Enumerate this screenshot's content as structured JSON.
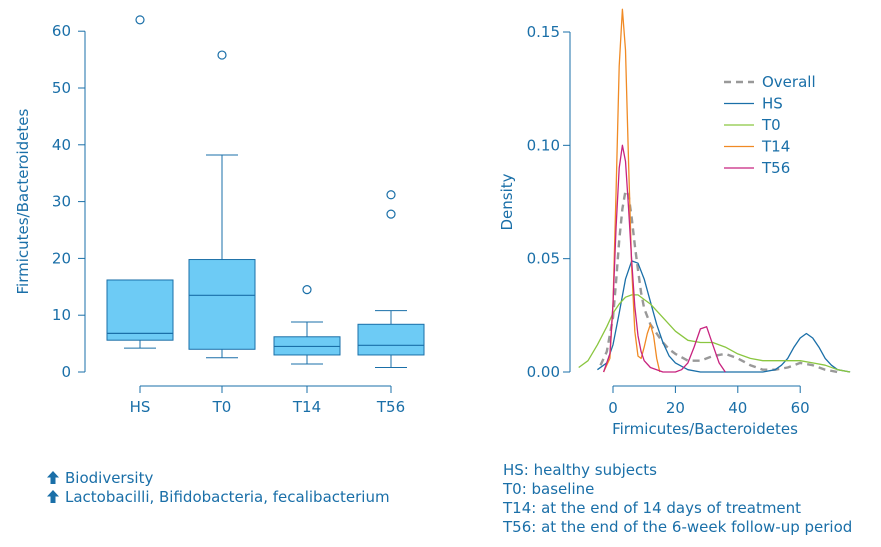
{
  "chart_data": [
    {
      "type": "box",
      "ylabel": "Firmicutes/Bacteroidetes",
      "xlabel": "",
      "ylim": [
        0,
        60
      ],
      "yticks": [
        0,
        10,
        20,
        30,
        40,
        50,
        60
      ],
      "categories": [
        "HS",
        "T0",
        "T14",
        "T56"
      ],
      "boxes": [
        {
          "name": "HS",
          "whisker_low": 4.2,
          "q1": 5.6,
          "median": 6.8,
          "q3": 16.2,
          "whisker_high": 16.2,
          "outliers": [
            62
          ]
        },
        {
          "name": "T0",
          "whisker_low": 2.5,
          "q1": 4.0,
          "median": 13.5,
          "q3": 19.8,
          "whisker_high": 38.2,
          "outliers": [
            55.8
          ]
        },
        {
          "name": "T14",
          "whisker_low": 1.4,
          "q1": 3.0,
          "median": 4.5,
          "q3": 6.2,
          "whisker_high": 8.8,
          "outliers": [
            14.5
          ]
        },
        {
          "name": "T56",
          "whisker_low": 0.8,
          "q1": 3.0,
          "median": 4.7,
          "q3": 8.4,
          "whisker_high": 10.8,
          "outliers": [
            27.8,
            31.2
          ]
        }
      ],
      "colors": {
        "axis": "#1a6fa8",
        "box_fill": "#6dcbf5",
        "box_stroke": "#1a6fa8"
      }
    },
    {
      "type": "line",
      "xlabel": "Firmicutes/Bacteroidetes",
      "ylabel": "Density",
      "xlim": [
        -11,
        78
      ],
      "ylim": [
        0,
        0.16
      ],
      "xticks": [
        0,
        20,
        40,
        60
      ],
      "yticks": [
        0.0,
        0.05,
        0.1,
        0.15
      ],
      "ytick_labels": [
        "0.00",
        "0.05",
        "0.10",
        "0.15"
      ],
      "legend": {
        "position": "top-right"
      },
      "series": [
        {
          "name": "Overall",
          "color": "#999999",
          "dashed": true,
          "x": [
            -4,
            -2,
            0,
            1,
            2,
            3,
            4,
            5,
            6,
            7,
            8,
            9,
            10,
            12,
            14,
            16,
            18,
            20,
            24,
            28,
            32,
            36,
            40,
            44,
            48,
            52,
            56,
            60,
            64,
            68,
            72
          ],
          "y": [
            0.003,
            0.009,
            0.024,
            0.04,
            0.058,
            0.072,
            0.08,
            0.078,
            0.068,
            0.056,
            0.045,
            0.035,
            0.028,
            0.021,
            0.017,
            0.013,
            0.01,
            0.008,
            0.005,
            0.005,
            0.007,
            0.008,
            0.006,
            0.003,
            0.001,
            0.001,
            0.002,
            0.004,
            0.003,
            0.001,
            0.0
          ]
        },
        {
          "name": "HS",
          "color": "#1a6fa8",
          "dashed": false,
          "x": [
            -5,
            -2,
            0,
            2,
            4,
            6,
            8,
            10,
            12,
            14,
            16,
            18,
            20,
            24,
            28,
            32,
            36,
            40,
            44,
            48,
            52,
            54,
            56,
            58,
            60,
            62,
            64,
            66,
            68,
            70,
            72,
            76
          ],
          "y": [
            0.001,
            0.004,
            0.012,
            0.026,
            0.041,
            0.049,
            0.048,
            0.041,
            0.031,
            0.021,
            0.013,
            0.007,
            0.004,
            0.001,
            0.0,
            0.0,
            0.0,
            0.0,
            0.0,
            0.0,
            0.001,
            0.003,
            0.006,
            0.011,
            0.015,
            0.017,
            0.015,
            0.011,
            0.006,
            0.003,
            0.001,
            0.0
          ]
        },
        {
          "name": "T0",
          "color": "#8ac640",
          "dashed": false,
          "x": [
            -11,
            -8,
            -5,
            -2,
            0,
            2,
            4,
            6,
            8,
            10,
            12,
            14,
            16,
            18,
            20,
            24,
            28,
            32,
            36,
            40,
            44,
            48,
            52,
            56,
            60,
            64,
            68,
            72,
            76
          ],
          "y": [
            0.002,
            0.005,
            0.012,
            0.02,
            0.026,
            0.03,
            0.033,
            0.034,
            0.034,
            0.032,
            0.03,
            0.027,
            0.024,
            0.021,
            0.018,
            0.014,
            0.013,
            0.013,
            0.011,
            0.008,
            0.006,
            0.005,
            0.005,
            0.005,
            0.005,
            0.004,
            0.003,
            0.001,
            0.0
          ]
        },
        {
          "name": "T14",
          "color": "#f08a24",
          "dashed": false,
          "x": [
            -3,
            -1,
            0,
            1,
            2,
            3,
            4,
            5,
            6,
            7,
            8,
            9,
            10,
            11,
            12,
            13,
            14,
            15
          ],
          "y": [
            0.0,
            0.006,
            0.03,
            0.08,
            0.135,
            0.16,
            0.142,
            0.092,
            0.046,
            0.018,
            0.007,
            0.006,
            0.011,
            0.017,
            0.021,
            0.016,
            0.006,
            0.0
          ]
        },
        {
          "name": "T56",
          "color": "#c8237f",
          "dashed": false,
          "x": [
            -3,
            -1,
            0,
            1,
            2,
            3,
            4,
            5,
            6,
            7,
            8,
            9,
            10,
            12,
            14,
            16,
            18,
            20,
            22,
            24,
            26,
            28,
            30,
            32,
            34,
            36
          ],
          "y": [
            0.0,
            0.008,
            0.03,
            0.064,
            0.09,
            0.1,
            0.093,
            0.072,
            0.049,
            0.029,
            0.016,
            0.009,
            0.005,
            0.002,
            0.001,
            0.0,
            0.0,
            0.0,
            0.001,
            0.004,
            0.011,
            0.019,
            0.02,
            0.012,
            0.004,
            0.0
          ]
        }
      ]
    }
  ],
  "notes_left": [
    {
      "icon": "up-arrow-icon",
      "text": "Biodiversity"
    },
    {
      "icon": "up-arrow-icon",
      "text": "Lactobacilli, Bifidobacteria, fecalibacterium"
    }
  ],
  "notes_right": [
    "HS: healthy subjects",
    "T0: baseline",
    "T14: at the end of 14 days of treatment",
    "T56: at the end of the 6-week follow-up period"
  ]
}
